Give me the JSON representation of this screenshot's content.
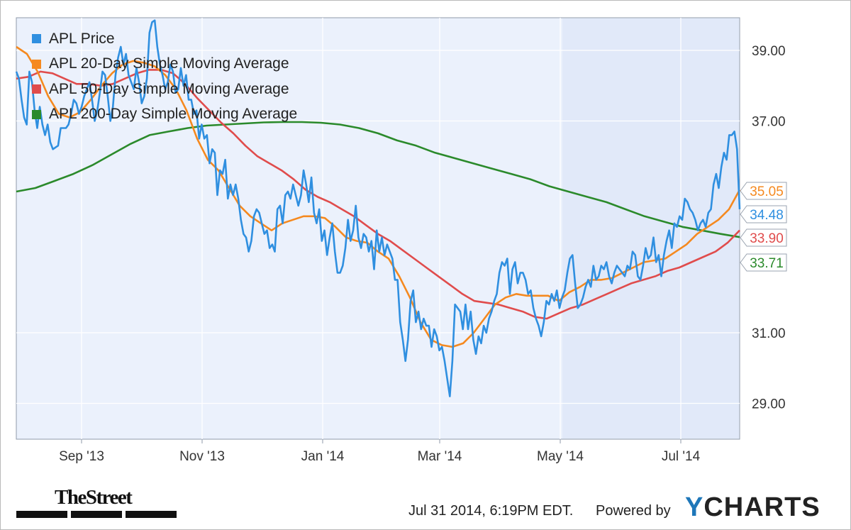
{
  "chart_data": {
    "type": "line",
    "x_ticks": [
      "Sep '13",
      "Nov '13",
      "Jan '14",
      "Mar '14",
      "May '14",
      "Jul '14"
    ],
    "y_ticks": [
      29.0,
      31.0,
      37.0,
      39.0
    ],
    "y_tick_labels": [
      "29.00",
      "31.00",
      "37.00",
      "39.00"
    ],
    "ylim": [
      28.0,
      39.9
    ],
    "grid": true,
    "legend_position": "top-left",
    "series": [
      {
        "name": "APL Price",
        "color": "#2f8fe0",
        "last_label": "34.48",
        "values": [
          38.4,
          38.2,
          37.6,
          37.1,
          36.9,
          38.4,
          38.1,
          37.3,
          36.8,
          37.4,
          36.9,
          36.6,
          36.9,
          36.4,
          36.2,
          36.25,
          36.3,
          36.8,
          36.8,
          36.8,
          36.9,
          37.2,
          37.6,
          37.5,
          37.2,
          37.4,
          37.7,
          37.9,
          38.1,
          37.6,
          37.0,
          37.3,
          37.8,
          38.4,
          38.3,
          37.7,
          37.0,
          37.4,
          38.3,
          38.8,
          39.1,
          38.6,
          38.9,
          38.3,
          38.1,
          37.9,
          38.5,
          38.1,
          37.5,
          37.7,
          38.2,
          39.5,
          39.8,
          39.85,
          39.1,
          38.6,
          38.3,
          37.9,
          38.1,
          38.6,
          38.4,
          37.8,
          37.9,
          38.5,
          38.0,
          38.3,
          37.6,
          37.6,
          37.2,
          37.3,
          36.5,
          36.9,
          36.5,
          36.6,
          35.8,
          36.2,
          36.1,
          34.9,
          35.6,
          35.5,
          35.9,
          34.8,
          35.2,
          34.9,
          35.2,
          34.8,
          34.2,
          33.8,
          33.7,
          33.3,
          33.6,
          34.3,
          34.5,
          34.4,
          34.1,
          33.8,
          33.9,
          33.4,
          33.5,
          33.3,
          34.5,
          34.6,
          34.1,
          34.9,
          35.0,
          34.8,
          35.2,
          34.9,
          34.6,
          34.9,
          35.6,
          35.2,
          34.7,
          35.4,
          34.4,
          34.1,
          34.5,
          33.6,
          33.9,
          33.2,
          33.7,
          34.1,
          33.3,
          32.7,
          32.7,
          32.9,
          33.4,
          34.2,
          33.6,
          33.9,
          34.6,
          33.7,
          33.4,
          33.8,
          33.7,
          33.3,
          33.6,
          32.8,
          33.9,
          33.3,
          33.7,
          33.2,
          33.5,
          33.3,
          33.1,
          32.5,
          32.5,
          31.3,
          30.8,
          30.2,
          30.8,
          31.9,
          32.2,
          31.3,
          31.6,
          31.1,
          31.4,
          31.2,
          31.2,
          30.6,
          31.1,
          30.9,
          30.5,
          30.6,
          30.2,
          29.7,
          29.2,
          30.2,
          31.8,
          31.7,
          31.6,
          31.1,
          31.8,
          31.1,
          31.6,
          30.8,
          30.4,
          30.9,
          30.7,
          31.2,
          31.0,
          31.4,
          31.6,
          31.9,
          32.1,
          32.7,
          33.0,
          32.9,
          33.1,
          32.1,
          32.8,
          33.0,
          32.4,
          32.7,
          32.7,
          32.5,
          32.1,
          32.2,
          31.7,
          31.4,
          31.2,
          30.9,
          31.3,
          31.9,
          31.8,
          32.1,
          31.9,
          32.2,
          31.7,
          32.0,
          32.2,
          32.7,
          33.1,
          33.2,
          32.4,
          31.7,
          31.8,
          32.0,
          32.3,
          32.5,
          32.3,
          32.9,
          32.5,
          32.6,
          32.9,
          32.8,
          33.0,
          32.6,
          32.4,
          32.7,
          32.9,
          32.8,
          32.7,
          32.6,
          32.9,
          32.8,
          33.3,
          33.2,
          32.6,
          32.5,
          32.9,
          33.4,
          33.1,
          33.2,
          33.7,
          33.0,
          33.2,
          32.6,
          33.2,
          33.6,
          33.9,
          33.4,
          34.1,
          34.0,
          34.3,
          34.2,
          34.8,
          34.7,
          34.5,
          34.4,
          34.2,
          33.9,
          34.1,
          34.2,
          34.0,
          34.4,
          34.5,
          35.2,
          35.5,
          35.1,
          35.7,
          36.1,
          35.9,
          36.6,
          36.6,
          36.7,
          36.2,
          34.5
        ]
      },
      {
        "name": "APL 20-Day Simple Moving Average",
        "color": "#f5891f",
        "last_label": "35.05",
        "values": [
          39.1,
          38.9,
          38.4,
          37.7,
          37.2,
          37.1,
          37.25,
          37.6,
          38.0,
          38.35,
          38.6,
          38.7,
          38.65,
          38.55,
          38.3,
          37.9,
          37.3,
          36.5,
          35.9,
          35.6,
          35.1,
          34.6,
          34.3,
          34.1,
          33.9,
          34.1,
          34.2,
          34.3,
          34.3,
          34.25,
          34.0,
          33.7,
          33.6,
          33.55,
          33.3,
          33.1,
          32.6,
          32.0,
          31.3,
          30.8,
          30.65,
          30.6,
          30.7,
          31.0,
          31.4,
          31.8,
          32.0,
          32.1,
          32.05,
          32.05,
          32.05,
          31.9,
          32.15,
          32.3,
          32.5,
          32.5,
          32.55,
          32.7,
          32.85,
          33.0,
          33.05,
          33.1,
          33.3,
          33.5,
          33.8,
          34.0,
          34.2,
          34.5,
          35.05
        ]
      },
      {
        "name": "APL 50-Day Simple Moving Average",
        "color": "#e04c4c",
        "last_label": "33.90",
        "values": [
          38.2,
          38.25,
          38.4,
          38.35,
          38.2,
          38.05,
          38.05,
          38.0,
          38.05,
          38.2,
          38.35,
          38.45,
          38.45,
          38.35,
          38.05,
          37.65,
          37.3,
          36.95,
          36.65,
          36.3,
          36.0,
          35.8,
          35.6,
          35.35,
          35.05,
          34.85,
          34.7,
          34.5,
          34.3,
          34.05,
          33.8,
          33.6,
          33.35,
          33.1,
          32.85,
          32.6,
          32.35,
          32.1,
          31.9,
          31.85,
          31.8,
          31.7,
          31.6,
          31.45,
          31.4,
          31.55,
          31.7,
          31.8,
          31.95,
          32.1,
          32.25,
          32.4,
          32.5,
          32.6,
          32.75,
          32.85,
          33.0,
          33.15,
          33.3,
          33.55,
          33.9
        ]
      },
      {
        "name": "APL 200-Day Simple Moving Average",
        "color": "#2b8a2b",
        "last_label": "33.71",
        "values": [
          35.0,
          35.1,
          35.3,
          35.5,
          35.75,
          36.05,
          36.35,
          36.6,
          36.7,
          36.8,
          36.87,
          36.9,
          36.93,
          36.96,
          36.97,
          36.97,
          36.95,
          36.9,
          36.8,
          36.65,
          36.45,
          36.3,
          36.1,
          35.95,
          35.8,
          35.65,
          35.5,
          35.35,
          35.15,
          35.0,
          34.85,
          34.7,
          34.5,
          34.3,
          34.15,
          34.0,
          33.9,
          33.8,
          33.71
        ]
      }
    ]
  },
  "footer": {
    "timestamp": "Jul 31 2014, 6:19PM EDT.",
    "powered_by": "Powered by",
    "ycharts_y": "Y",
    "ycharts_rest": "CHARTS",
    "thestreet": "TheStreet"
  }
}
